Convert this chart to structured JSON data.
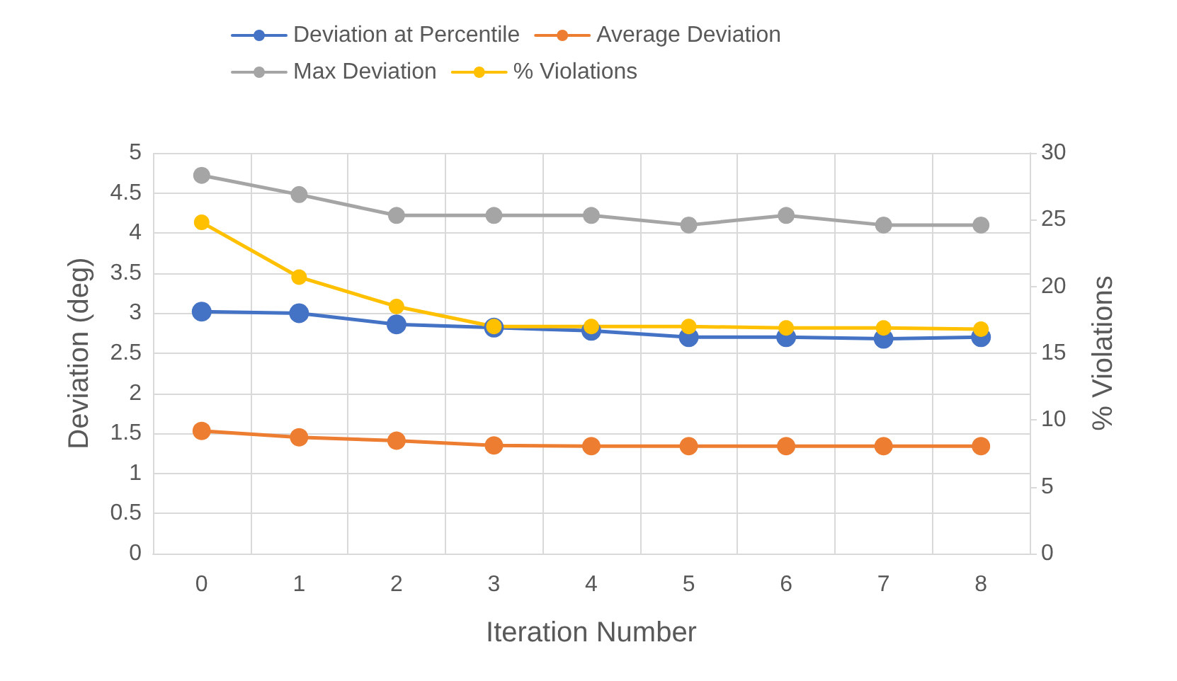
{
  "chart_data": {
    "type": "line",
    "xlabel": "Iteration Number",
    "ylabel": "Deviation (deg)",
    "y2label": "% Violations",
    "categories": [
      "0",
      "1",
      "2",
      "3",
      "4",
      "5",
      "6",
      "7",
      "8"
    ],
    "series": [
      {
        "name": "Deviation at Percentile",
        "color": "#4472c4",
        "values": [
          3.02,
          3.0,
          2.86,
          2.82,
          2.78,
          2.7,
          2.7,
          2.68,
          2.7
        ]
      },
      {
        "name": "Average Deviation",
        "color": "#ed7d31",
        "values": [
          1.53,
          1.45,
          1.41,
          1.35,
          1.34,
          1.34,
          1.34,
          1.34,
          1.34
        ]
      },
      {
        "name": "Max Deviation",
        "color": "#a5a5a5",
        "values": [
          4.72,
          4.48,
          4.22,
          4.22,
          4.22,
          4.1,
          4.22,
          4.1,
          4.1
        ]
      },
      {
        "name": "% Violations",
        "color": "#ffc000",
        "axis": "y2",
        "values": [
          24.8,
          20.7,
          18.5,
          17.0,
          17.0,
          17.0,
          16.9,
          16.9,
          16.8
        ]
      }
    ],
    "ylim": [
      0,
      5
    ],
    "yticks": [
      0,
      0.5,
      1,
      1.5,
      2,
      2.5,
      3,
      3.5,
      4,
      4.5,
      5
    ],
    "y2lim": [
      0,
      30
    ],
    "y2ticks": [
      0,
      5,
      10,
      15,
      20,
      25,
      30
    ],
    "grid": true,
    "legend": "top",
    "marker": "circle",
    "line_style": "solid"
  }
}
